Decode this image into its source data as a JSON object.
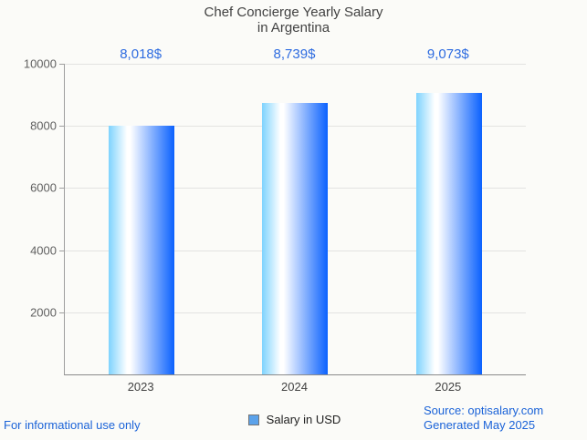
{
  "title": {
    "line1": "Chef Concierge Yearly Salary",
    "line2": "in Argentina"
  },
  "chart_data": {
    "type": "bar",
    "title": "Chef Concierge Yearly Salary in Argentina",
    "categories": [
      "2023",
      "2024",
      "2025"
    ],
    "series": [
      {
        "name": "Salary in USD",
        "values": [
          8018,
          8739,
          9073
        ]
      }
    ],
    "value_labels": [
      "8,018$",
      "8,739$",
      "9,073$"
    ],
    "ylabel": "",
    "xlabel": "",
    "ylim": [
      0,
      10000
    ],
    "yticks": [
      2000,
      4000,
      6000,
      8000,
      10000
    ],
    "grid": "horizontal-only",
    "legend_position": "bottom-center",
    "bar_style": "horizontal-gradient-cylinder"
  },
  "legend": {
    "label": "Salary in USD",
    "marker": "blue-square"
  },
  "footer": {
    "disclaimer": "For informational use only",
    "source": "Source: optisalary.com",
    "generated": "Generated May 2025"
  },
  "colors": {
    "background": "#fbfbf8",
    "title_text": "#424242",
    "value_label_text": "#2e6ce0",
    "y_axis_label_text": "#616161",
    "category_label_text": "#424242",
    "gridline": "#e3e3e1",
    "axis_line": "#9e9e9e",
    "bar_gradient_left": "#7ed3fe",
    "bar_gradient_mid": "#ffffff",
    "bar_gradient_right": "#0a61fe",
    "legend_marker_fill": "#5ba2ea",
    "legend_marker_border": "#757575",
    "legend_text": "#212121",
    "link_text": "#1b63d8"
  }
}
